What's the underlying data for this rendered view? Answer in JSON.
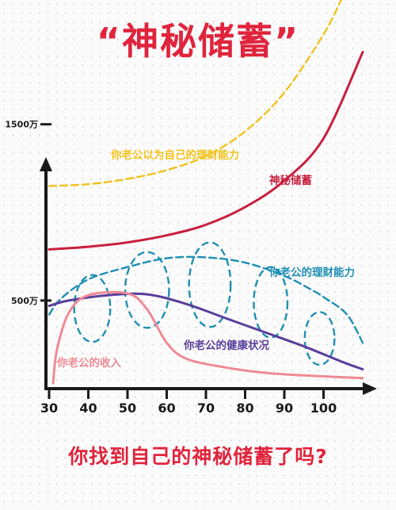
{
  "title": "“神秘储蓄”",
  "question": "你找到自己的神秘储蓄了吗?",
  "colors": {
    "accent_red": "#e0243c",
    "dashed_yellow": "#f2c21b",
    "savings_red": "#c8203f",
    "dashed_blue": "#1f8fb3",
    "income_pink": "#ef8a95",
    "health_purple": "#5a3e9a",
    "axis": "#1a1a1a"
  },
  "chart_data": {
    "type": "line",
    "x_ticks": [
      30,
      40,
      50,
      60,
      70,
      80,
      90,
      100
    ],
    "y_ticks": [
      {
        "value": 500,
        "label": "500万"
      },
      {
        "value": 1500,
        "label": "1500万"
      }
    ],
    "xlim": [
      30,
      112
    ],
    "ylim": [
      0,
      2200
    ],
    "grid": false,
    "series": [
      {
        "name": "你老公以为自己的理财能力",
        "style": "dashed",
        "color": "#f2c21b",
        "x": [
          30,
          40,
          50,
          60,
          70,
          80,
          90,
          100,
          105
        ],
        "y": [
          1150,
          1160,
          1190,
          1240,
          1320,
          1460,
          1680,
          2010,
          2230
        ]
      },
      {
        "name": "神秘储蓄",
        "style": "solid",
        "color": "#c8203f",
        "x": [
          30,
          40,
          50,
          60,
          70,
          80,
          90,
          100,
          110
        ],
        "y": [
          790,
          805,
          830,
          870,
          930,
          1030,
          1180,
          1420,
          1910
        ]
      },
      {
        "name": "你老公的理财能力",
        "style": "dashed",
        "color": "#1f8fb3",
        "x": [
          30,
          33,
          40,
          50,
          60,
          70,
          80,
          90,
          97,
          100,
          106,
          110
        ],
        "y": [
          420,
          510,
          620,
          690,
          740,
          745,
          715,
          640,
          560,
          520,
          420,
          260
        ]
      },
      {
        "name": "你老公的健康状况",
        "style": "solid",
        "color": "#5a3e9a",
        "x": [
          30,
          35,
          45,
          55,
          65,
          75,
          85,
          95,
          105,
          110
        ],
        "y": [
          470,
          500,
          530,
          535,
          480,
          400,
          320,
          240,
          150,
          110
        ]
      },
      {
        "name": "你老公的收入",
        "style": "solid",
        "color": "#ef8a95",
        "x": [
          31,
          32,
          35,
          40,
          50,
          55,
          60,
          65,
          75,
          85,
          95,
          105,
          110
        ],
        "y": [
          30,
          220,
          430,
          530,
          540,
          450,
          260,
          170,
          120,
          90,
          75,
          65,
          60
        ]
      }
    ],
    "bubbles": [
      {
        "x": 41,
        "y": 455,
        "rx": 4.6,
        "ry": 190
      },
      {
        "x": 55,
        "y": 560,
        "rx": 5.6,
        "ry": 215
      },
      {
        "x": 71,
        "y": 590,
        "rx": 5.3,
        "ry": 240
      },
      {
        "x": 86.5,
        "y": 490,
        "rx": 4.3,
        "ry": 200
      },
      {
        "x": 99,
        "y": 285,
        "rx": 3.8,
        "ry": 150
      }
    ]
  }
}
